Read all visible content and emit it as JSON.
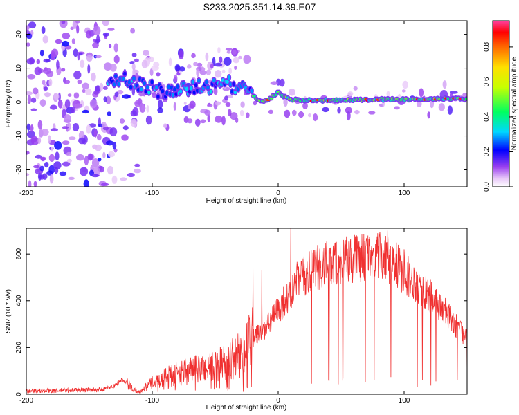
{
  "title": "S233.2025.351.14.39.E07",
  "chart_data": [
    {
      "type": "heatmap",
      "xlabel": "Height of straight line (km)",
      "ylabel": "Frequency (Hz)",
      "xlim": [
        -200,
        150
      ],
      "ylim": [
        -25,
        24
      ],
      "xticks": [
        -200,
        -100,
        0,
        100
      ],
      "yticks": [
        -20,
        -10,
        0,
        10,
        20
      ],
      "colorbar": {
        "label": "Normalized spectral amplitude",
        "range": [
          0,
          0.95
        ],
        "ticks": [
          0.0,
          0.2,
          0.4,
          0.6,
          0.8
        ]
      },
      "ridge": [
        {
          "x": -130,
          "y": 6
        },
        {
          "x": -120,
          "y": 7
        },
        {
          "x": -110,
          "y": 5
        },
        {
          "x": -100,
          "y": 4
        },
        {
          "x": -90,
          "y": 3
        },
        {
          "x": -80,
          "y": 3.5
        },
        {
          "x": -70,
          "y": 4
        },
        {
          "x": -60,
          "y": 4.5
        },
        {
          "x": -50,
          "y": 5
        },
        {
          "x": -40,
          "y": 5.5
        },
        {
          "x": -30,
          "y": 4
        },
        {
          "x": -20,
          "y": 2
        },
        {
          "x": -15,
          "y": 0.5
        },
        {
          "x": -10,
          "y": 0.3
        },
        {
          "x": -5,
          "y": 1.5
        },
        {
          "x": 0,
          "y": 3
        },
        {
          "x": 5,
          "y": 1.5
        },
        {
          "x": 10,
          "y": 0.8
        },
        {
          "x": 20,
          "y": 0.5
        },
        {
          "x": 40,
          "y": 0.5
        },
        {
          "x": 60,
          "y": 0.6
        },
        {
          "x": 80,
          "y": 0.8
        },
        {
          "x": 100,
          "y": 0.8
        },
        {
          "x": 120,
          "y": 1.0
        },
        {
          "x": 150,
          "y": 1.0
        }
      ]
    },
    {
      "type": "line",
      "xlabel": "Height of straight line (km)",
      "ylabel": "SNR (10 * v/v)",
      "xlim": [
        -200,
        150
      ],
      "ylim": [
        0,
        710
      ],
      "xticks": [
        -200,
        -100,
        0,
        100
      ],
      "yticks": [
        0,
        200,
        400,
        600
      ],
      "color": "#f03030",
      "series": [
        {
          "x": [
            -200,
            -180,
            -160,
            -140,
            -130,
            -125,
            -120,
            -115,
            -110,
            -100,
            -90,
            -80,
            -70,
            -60,
            -50,
            -40,
            -30,
            -25,
            -20,
            -15,
            -10,
            -5,
            0,
            5,
            10,
            15,
            20,
            30,
            40,
            50,
            60,
            70,
            80,
            90,
            100,
            110,
            120,
            130,
            140,
            150
          ],
          "values": [
            15,
            15,
            18,
            20,
            35,
            60,
            50,
            20,
            10,
            50,
            70,
            90,
            100,
            110,
            120,
            140,
            170,
            200,
            240,
            260,
            280,
            320,
            360,
            400,
            420,
            480,
            500,
            540,
            560,
            570,
            580,
            590,
            590,
            570,
            520,
            470,
            420,
            370,
            300,
            240
          ]
        }
      ],
      "spikes": [
        {
          "x": -20,
          "y": 540
        },
        {
          "x": -13,
          "y": 530
        },
        {
          "x": 10,
          "y": 710
        },
        {
          "x": 52,
          "y": 660
        },
        {
          "x": 78,
          "y": 660
        },
        {
          "x": 87,
          "y": 700
        },
        {
          "x": 100,
          "y": 620
        }
      ]
    }
  ]
}
